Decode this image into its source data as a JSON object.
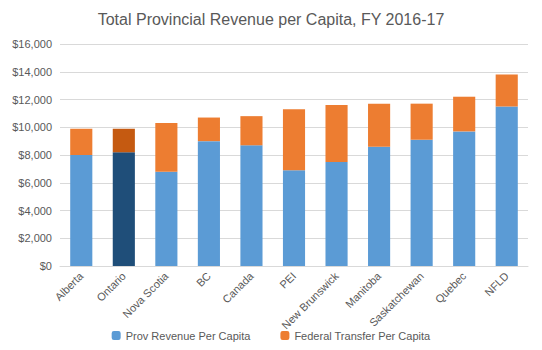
{
  "chart_data": {
    "type": "bar",
    "title": "Total Provincial Revenue per Capita, FY 2016-17",
    "categories": [
      "Alberta",
      "Ontario",
      "Nova Scotia",
      "BC",
      "Canada",
      "PEI",
      "New Brunswick",
      "Manitoba",
      "Saskatchewan",
      "Quebec",
      "NFLD"
    ],
    "series": [
      {
        "name": "Prov Revenue Per Capita",
        "color": "#5b9bd5",
        "colors": [
          "#5b9bd5",
          "#1f4e79",
          "#5b9bd5",
          "#5b9bd5",
          "#5b9bd5",
          "#5b9bd5",
          "#5b9bd5",
          "#5b9bd5",
          "#5b9bd5",
          "#5b9bd5",
          "#5b9bd5"
        ],
        "values": [
          8000,
          8200,
          6800,
          9000,
          8700,
          6900,
          7500,
          8600,
          9100,
          9700,
          11500
        ]
      },
      {
        "name": "Federal Transfer Per Capita",
        "color": "#ed7d31",
        "colors": [
          "#ed7d31",
          "#c55a11",
          "#ed7d31",
          "#ed7d31",
          "#ed7d31",
          "#ed7d31",
          "#ed7d31",
          "#ed7d31",
          "#ed7d31",
          "#ed7d31",
          "#ed7d31"
        ],
        "values": [
          1900,
          1700,
          3500,
          1700,
          2100,
          4400,
          4100,
          3100,
          2600,
          2500,
          2300
        ]
      }
    ],
    "stacked": true,
    "ylim": [
      0,
      16000
    ],
    "yticks": [
      {
        "value": 0,
        "label": "$0"
      },
      {
        "value": 2000,
        "label": "$2,000"
      },
      {
        "value": 4000,
        "label": "$4,000"
      },
      {
        "value": 6000,
        "label": "$6,000"
      },
      {
        "value": 8000,
        "label": "$8,000"
      },
      {
        "value": 10000,
        "label": "$10,000"
      },
      {
        "value": 12000,
        "label": "$12,000"
      },
      {
        "value": 14000,
        "label": "$14,000"
      },
      {
        "value": 16000,
        "label": "$16,000"
      }
    ],
    "grid": true,
    "legend": "bottom"
  }
}
